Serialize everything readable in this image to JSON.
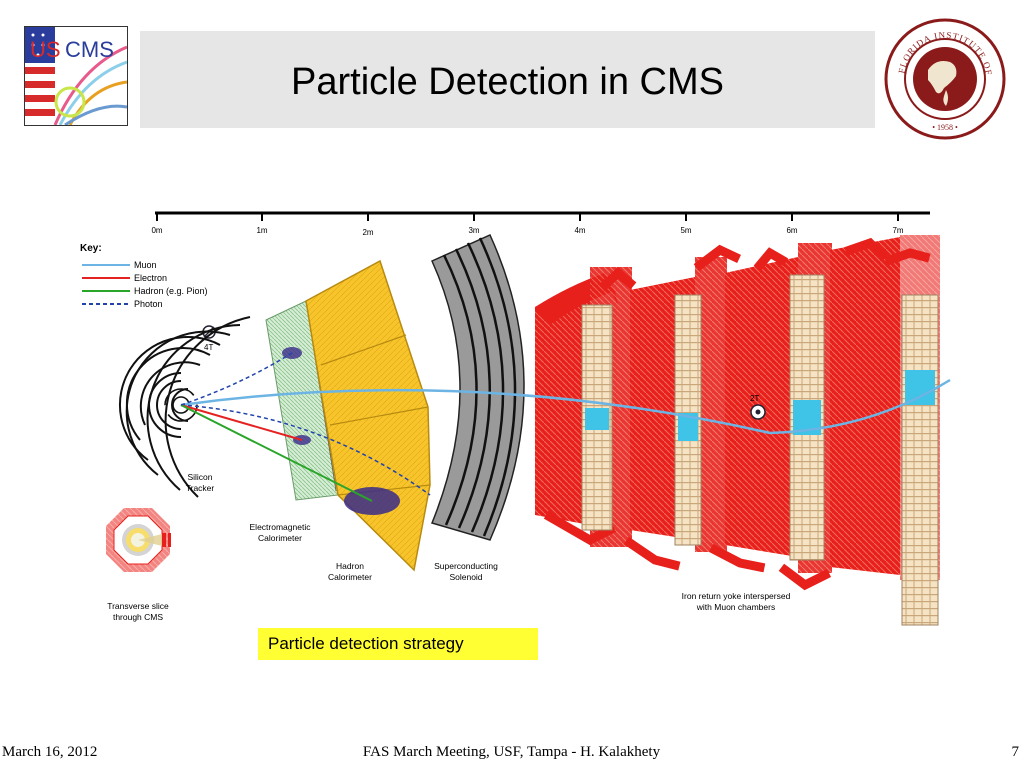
{
  "slide": {
    "title": "Particle Detection in CMS",
    "strategy_label": "Particle detection strategy"
  },
  "logos": {
    "left": {
      "text": "US CMS",
      "icon": "uscms-logo"
    },
    "right": {
      "icon": "florida-tech-seal"
    }
  },
  "diagram": {
    "key_title": "Key:",
    "key_items": [
      {
        "label": "Muon",
        "color": "#6cb4e4",
        "style": "solid"
      },
      {
        "label": "Electron",
        "color": "#e52222",
        "style": "solid"
      },
      {
        "label": "Hadron (e.g. Pion)",
        "color": "#2aa52a",
        "style": "solid"
      },
      {
        "label": "Photon",
        "color": "#2244aa",
        "style": "dashed"
      }
    ],
    "scale_ticks": [
      "0m",
      "1m",
      "2m",
      "3m",
      "4m",
      "5m",
      "6m",
      "7m"
    ],
    "field_inner": "4T",
    "field_outer": "2T",
    "labels": {
      "tracker_1": "Silicon",
      "tracker_2": "Tracker",
      "ecal_1": "Electromagnetic",
      "ecal_2": "Calorimeter",
      "hcal_1": "Hadron",
      "hcal_2": "Calorimeter",
      "solenoid_1": "Superconducting",
      "solenoid_2": "Solenoid",
      "yoke_1": "Iron return yoke interspersed",
      "yoke_2": "with Muon chambers",
      "slice_1": "Transverse slice",
      "slice_2": "through CMS"
    }
  },
  "footer": {
    "date": "March 16, 2012",
    "center": "FAS March Meeting, USF, Tampa  - H. Kalakhety",
    "page": "7"
  },
  "colors": {
    "title_band": "#e6e6e6",
    "hcal": "#f7c52b",
    "ecal": "#c8e6c8",
    "yoke": "#e8201c",
    "solenoid": "#999999",
    "highlight": "#ffff33"
  }
}
